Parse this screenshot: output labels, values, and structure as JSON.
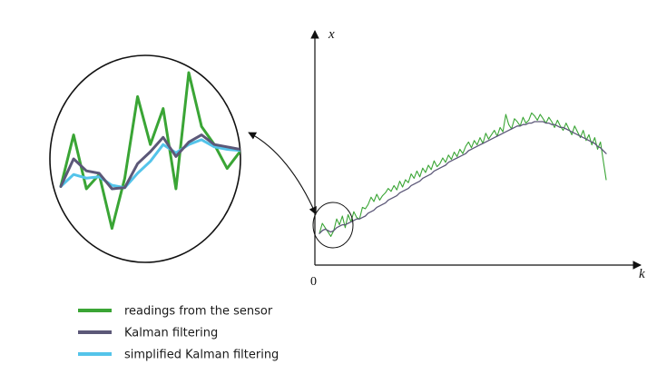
{
  "chart_data": {
    "type": "line",
    "xlabel": "k",
    "ylabel": "x",
    "origin_label": "0",
    "inset": "magnified view of the start of the signal",
    "colors": {
      "sensor": "#3aa535",
      "kalman": "#5c5878",
      "simplified": "#54c4ea"
    },
    "legend": [
      {
        "key": "sensor",
        "label": "readings from the sensor"
      },
      {
        "key": "kalman",
        "label": "Kalman filtering"
      },
      {
        "key": "simplified",
        "label": "simplified Kalman filtering"
      }
    ],
    "ylim": [
      0,
      100
    ],
    "main": {
      "sensor": {
        "x": [
          0,
          1,
          2,
          3,
          4,
          5,
          6,
          7,
          8,
          9,
          10,
          11,
          12,
          13,
          14,
          15,
          16,
          17,
          18,
          19,
          20,
          21,
          22,
          23,
          24,
          25,
          26,
          27,
          28,
          29,
          30,
          31,
          32,
          33,
          34,
          35,
          36,
          37,
          38,
          39,
          40,
          41,
          42,
          43,
          44,
          45,
          46,
          47,
          48,
          49,
          50,
          51,
          52,
          53,
          54,
          55,
          56,
          57,
          58,
          59,
          60,
          61,
          62,
          63,
          64,
          65,
          66,
          67,
          68,
          69,
          70,
          71,
          72,
          73,
          74,
          75,
          76,
          77,
          78,
          79,
          80,
          81,
          82,
          83,
          84,
          85,
          86,
          87,
          88,
          89,
          90,
          91,
          92,
          93,
          94,
          95,
          96,
          97,
          98,
          99,
          100
        ],
        "y": [
          8,
          15,
          12,
          9,
          6,
          10,
          18,
          14,
          20,
          12,
          21,
          16,
          23,
          19,
          18,
          26,
          25,
          28,
          33,
          30,
          35,
          31,
          34,
          36,
          39,
          37,
          41,
          38,
          44,
          40,
          45,
          43,
          49,
          46,
          51,
          47,
          53,
          50,
          55,
          52,
          58,
          54,
          56,
          60,
          57,
          62,
          59,
          64,
          61,
          66,
          63,
          68,
          71,
          67,
          72,
          69,
          74,
          70,
          77,
          73,
          76,
          79,
          75,
          81,
          78,
          90,
          83,
          80,
          87,
          85,
          82,
          88,
          84,
          86,
          91,
          89,
          86,
          90,
          87,
          84,
          88,
          85,
          81,
          86,
          82,
          79,
          84,
          80,
          76,
          82,
          78,
          74,
          79,
          72,
          76,
          69,
          74,
          66,
          71,
          58,
          45
        ]
      },
      "kalman": {
        "x": [
          0,
          1,
          2,
          3,
          4,
          5,
          6,
          7,
          8,
          9,
          10,
          11,
          12,
          13,
          14,
          15,
          16,
          17,
          18,
          19,
          20,
          21,
          22,
          23,
          24,
          25,
          26,
          27,
          28,
          29,
          30,
          31,
          32,
          33,
          34,
          35,
          36,
          37,
          38,
          39,
          40,
          41,
          42,
          43,
          44,
          45,
          46,
          47,
          48,
          49,
          50,
          51,
          52,
          53,
          54,
          55,
          56,
          57,
          58,
          59,
          60,
          61,
          62,
          63,
          64,
          65,
          66,
          67,
          68,
          69,
          70,
          71,
          72,
          73,
          74,
          75,
          76,
          77,
          78,
          79,
          80,
          81,
          82,
          83,
          84,
          85,
          86,
          87,
          88,
          89,
          90,
          91,
          92,
          93,
          94,
          95,
          96,
          97,
          98,
          99,
          100
        ],
        "y": [
          8,
          10,
          11,
          10,
          9,
          10,
          12,
          13,
          14,
          14,
          15,
          16,
          17,
          18,
          18,
          19,
          20,
          22,
          23,
          24,
          26,
          27,
          28,
          29,
          31,
          32,
          33,
          34,
          36,
          37,
          38,
          39,
          41,
          42,
          43,
          44,
          46,
          47,
          48,
          49,
          51,
          52,
          53,
          54,
          55,
          57,
          58,
          59,
          60,
          61,
          62,
          63,
          65,
          66,
          67,
          68,
          69,
          70,
          71,
          72,
          73,
          74,
          75,
          76,
          77,
          78,
          79,
          80,
          81,
          82,
          82,
          83,
          83,
          84,
          84,
          85,
          85,
          85,
          85,
          84,
          84,
          83,
          83,
          82,
          81,
          81,
          80,
          79,
          78,
          77,
          76,
          75,
          74,
          73,
          72,
          71,
          70,
          68,
          67,
          65,
          63
        ]
      }
    },
    "inset_series": {
      "sensor": {
        "x": [
          0,
          1,
          2,
          3,
          4,
          5,
          6,
          7,
          8,
          9,
          10,
          11,
          12,
          13,
          14
        ],
        "y": [
          5,
          48,
          3,
          15,
          -30,
          12,
          80,
          40,
          70,
          3,
          100,
          55,
          40,
          20,
          34
        ]
      },
      "kalman": {
        "x": [
          0,
          1,
          2,
          3,
          4,
          5,
          6,
          7,
          8,
          9,
          10,
          11,
          12,
          13,
          14
        ],
        "y": [
          5,
          28,
          18,
          16,
          3,
          4,
          24,
          34,
          46,
          30,
          42,
          48,
          40,
          38,
          36
        ]
      },
      "simplified": {
        "x": [
          0,
          1,
          2,
          3,
          4,
          5,
          6,
          7,
          8,
          9,
          10,
          11,
          12,
          13,
          14
        ],
        "y": [
          5,
          15,
          12,
          13,
          6,
          4,
          16,
          26,
          40,
          33,
          40,
          44,
          38,
          36,
          35
        ]
      }
    }
  }
}
